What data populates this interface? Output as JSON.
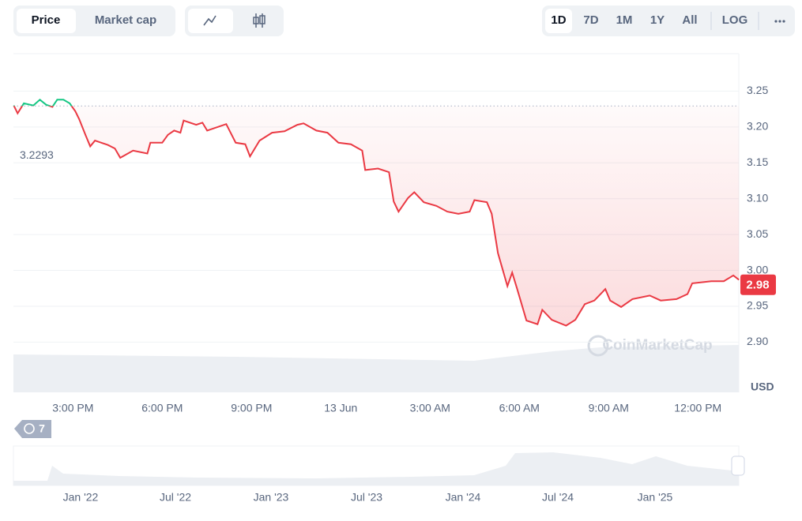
{
  "toolbar": {
    "view_tabs": [
      "Price",
      "Market cap"
    ],
    "ranges": [
      "1D",
      "7D",
      "1M",
      "1Y",
      "All"
    ],
    "log": "LOG"
  },
  "chart_data": {
    "type": "line",
    "x": [
      13.01,
      13.14,
      13.35,
      13.67,
      13.89,
      14.1,
      14.31,
      14.47,
      14.68,
      14.89,
      15.08,
      15.21,
      15.42,
      15.58,
      15.74,
      16.17,
      16.41,
      16.59,
      17.02,
      17.5,
      17.6,
      18.0,
      18.19,
      18.4,
      18.61,
      18.72,
      19.14,
      19.35,
      19.51,
      20.15,
      20.47,
      20.79,
      20.95,
      21.27,
      21.69,
      22.11,
      22.54,
      22.75,
      23.18,
      23.55,
      23.92,
      24.34,
      24.72,
      24.82,
      25.25,
      25.62,
      25.78,
      25.94,
      26.26,
      26.47,
      26.79,
      27.21,
      27.58,
      27.95,
      28.33,
      28.49,
      28.91,
      29.07,
      29.28,
      29.6,
      29.76,
      29.92,
      30.24,
      30.61,
      30.77,
      31.09,
      31.57,
      31.88,
      32.2,
      32.52,
      32.89,
      33.05,
      33.42,
      33.8,
      34.38,
      34.75,
      35.28,
      35.65,
      35.81,
      36.45,
      36.87,
      37.19,
      37.38
    ],
    "values": [
      3.23,
      3.219,
      3.233,
      3.23,
      3.238,
      3.231,
      3.228,
      3.238,
      3.238,
      3.233,
      3.222,
      3.211,
      3.189,
      3.173,
      3.181,
      3.175,
      3.17,
      3.157,
      3.167,
      3.163,
      3.178,
      3.178,
      3.189,
      3.195,
      3.192,
      3.209,
      3.203,
      3.206,
      3.195,
      3.204,
      3.178,
      3.176,
      3.159,
      3.181,
      3.192,
      3.194,
      3.203,
      3.205,
      3.195,
      3.192,
      3.178,
      3.176,
      3.167,
      3.14,
      3.142,
      3.137,
      3.096,
      3.082,
      3.101,
      3.109,
      3.095,
      3.09,
      3.082,
      3.079,
      3.082,
      3.098,
      3.095,
      3.079,
      3.024,
      2.978,
      2.997,
      2.975,
      2.93,
      2.925,
      2.945,
      2.931,
      2.923,
      2.931,
      2.953,
      2.958,
      2.974,
      2.958,
      2.949,
      2.96,
      2.965,
      2.958,
      2.96,
      2.967,
      2.982,
      2.985,
      2.985,
      2.993,
      2.987
    ],
    "color_down": "#ea3943",
    "color_up": "#16c784",
    "reference": 3.2293,
    "current_price": 2.98,
    "xlim": [
      13,
      37.4
    ],
    "xticks": [
      {
        "value": 15,
        "label": "3:00 PM"
      },
      {
        "value": 18,
        "label": "6:00 PM"
      },
      {
        "value": 21,
        "label": "9:00 PM"
      },
      {
        "value": 24,
        "label": "13 Jun"
      },
      {
        "value": 27,
        "label": "3:00 AM"
      },
      {
        "value": 30,
        "label": "6:00 AM"
      },
      {
        "value": 33,
        "label": "9:00 AM"
      },
      {
        "value": 36,
        "label": "12:00 PM"
      }
    ],
    "ylim": [
      2.83,
      3.3
    ],
    "yticks": [
      {
        "value": 2.9,
        "label": "2.90"
      },
      2.95,
      {
        "value": 3.0,
        "label": "3.00"
      },
      3.05,
      {
        "value": 3.1,
        "label": "3.10"
      },
      3.15,
      {
        "value": 3.2,
        "label": "3.20"
      },
      3.25
    ],
    "y_label": "USD",
    "grid": true,
    "watermark": "CoinMarketCap"
  },
  "events_badge": "7",
  "navigator": {
    "labels": [
      "Jan '22",
      "Jul '22",
      "Jan '23",
      "Jul '23",
      "Jan '24",
      "Jul '24",
      "Jan '25"
    ]
  }
}
